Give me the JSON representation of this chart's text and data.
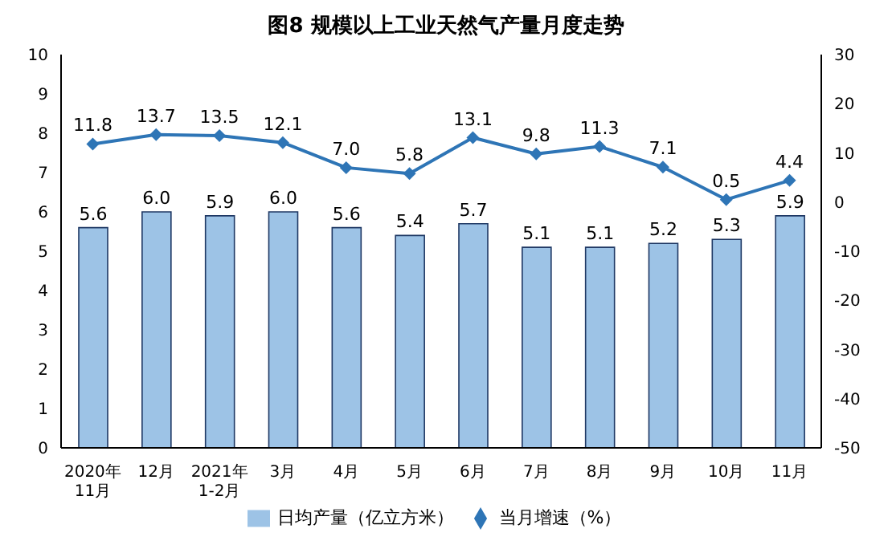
{
  "chart_data": {
    "type": "bar",
    "title": "图8  规模以上工业天然气产量月度走势",
    "categories": [
      "2020年\n11月",
      "12月",
      "2021年\n1-2月",
      "3月",
      "4月",
      "5月",
      "6月",
      "7月",
      "8月",
      "9月",
      "10月",
      "11月"
    ],
    "series": [
      {
        "name": "日均产量（亿立方米）",
        "color": "#9dc3e6",
        "values": [
          5.6,
          6.0,
          5.9,
          6.0,
          5.6,
          5.4,
          5.7,
          5.1,
          5.1,
          5.2,
          5.3,
          5.9
        ],
        "value_labels": [
          "5.6",
          "6.0",
          "5.9",
          "6.0",
          "5.6",
          "5.4",
          "5.7",
          "5.1",
          "5.1",
          "5.2",
          "5.3",
          "5.9"
        ]
      },
      {
        "name": "当月增速（%）",
        "type": "line",
        "axis": "y2",
        "color": "#2e75b6",
        "values": [
          11.8,
          13.7,
          13.5,
          12.1,
          7.0,
          5.8,
          13.1,
          9.8,
          11.3,
          7.1,
          0.5,
          4.4
        ],
        "value_labels": [
          "11.8",
          "13.7",
          "13.5",
          "12.1",
          "7.0",
          "5.8",
          "13.1",
          "9.8",
          "11.3",
          "7.1",
          "0.5",
          "4.4"
        ]
      }
    ],
    "ylim": [
      0,
      10
    ],
    "yticks": [
      0,
      1,
      2,
      3,
      4,
      5,
      6,
      7,
      8,
      9,
      10
    ],
    "y2lim": [
      -50,
      30
    ],
    "y2ticks": [
      -50,
      -40,
      -30,
      -20,
      -10,
      0,
      10,
      20,
      30
    ],
    "grid": false,
    "legend": "bottom",
    "marker": "diamond",
    "line_style": "solid"
  }
}
